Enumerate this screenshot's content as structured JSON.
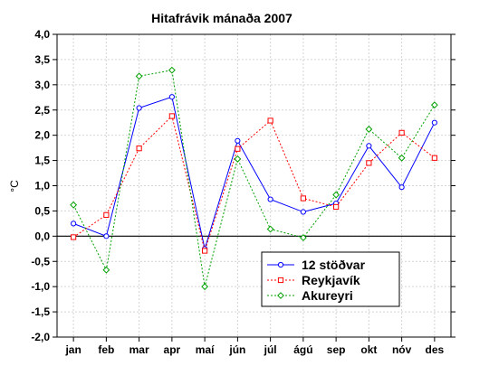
{
  "chart_data": {
    "type": "line",
    "title": "Hitafrávik mánaða 2007",
    "xlabel": "",
    "ylabel": "°C",
    "categories": [
      "jan",
      "feb",
      "mar",
      "apr",
      "maí",
      "jún",
      "júl",
      "ágú",
      "sep",
      "okt",
      "nóv",
      "des"
    ],
    "ylim": [
      -2.0,
      4.0
    ],
    "yticks": [
      "-2,0",
      "-1,5",
      "-1,0",
      "-0,5",
      "0,0",
      "0,5",
      "1,0",
      "1,5",
      "2,0",
      "2,5",
      "3,0",
      "3,5",
      "4,0"
    ],
    "grid": true,
    "legend_position": "bottom-right",
    "series": [
      {
        "name": "12 stöðvar",
        "color": "#0000ff",
        "marker": "circle",
        "line_style": "solid",
        "values": [
          0.25,
          0.0,
          2.54,
          2.76,
          -0.25,
          1.89,
          0.73,
          0.48,
          0.65,
          1.79,
          0.97,
          2.25
        ]
      },
      {
        "name": "Reykjavík",
        "color": "#ff0000",
        "marker": "square",
        "line_style": "dotted",
        "values": [
          -0.02,
          0.42,
          1.74,
          2.38,
          -0.29,
          1.73,
          2.29,
          0.75,
          0.58,
          1.45,
          2.05,
          1.55
        ]
      },
      {
        "name": "Akureyri",
        "color": "#00a000",
        "marker": "diamond",
        "line_style": "dotted",
        "values": [
          0.62,
          -0.67,
          3.17,
          3.29,
          -1.0,
          1.53,
          0.14,
          -0.03,
          0.82,
          2.12,
          1.55,
          2.6
        ]
      }
    ]
  }
}
